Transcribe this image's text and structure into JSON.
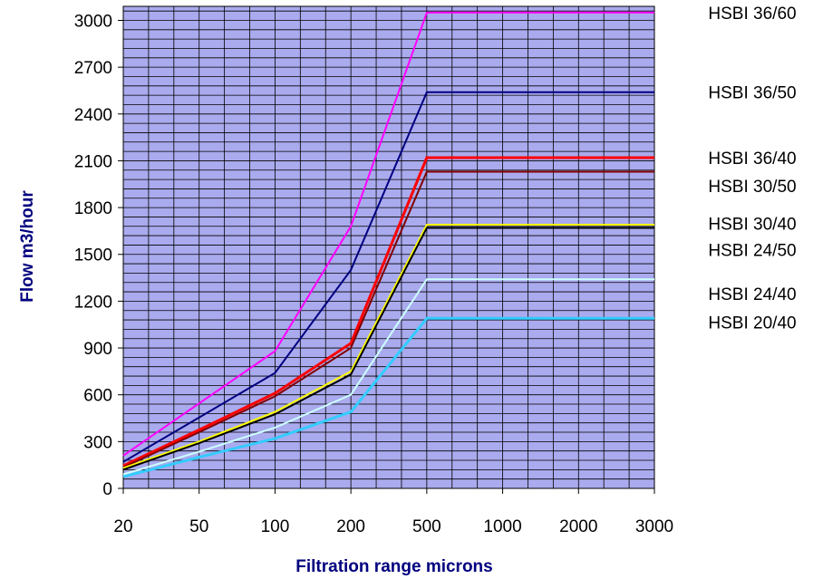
{
  "chart_data": {
    "type": "line",
    "title": "",
    "xlabel": "Filtration range microns",
    "ylabel": "Flow m3/hour",
    "x_scale": "categorical",
    "categories": [
      "20",
      "50",
      "100",
      "200",
      "500",
      "1000",
      "2000",
      "3000"
    ],
    "yticks": [
      "0",
      "300",
      "600",
      "900",
      "1200",
      "1500",
      "1800",
      "2100",
      "2400",
      "2700",
      "3000"
    ],
    "ylim": [
      0,
      3090
    ],
    "grid": true,
    "plot_background": "#aaaaee",
    "axis_title_color": "#00007f",
    "legend_placement": "right",
    "series": [
      {
        "name": "HSBI 36/60",
        "color": "#ff00ff",
        "width": 2,
        "values": [
          210,
          545,
          880,
          1680,
          3050,
          3050,
          3050,
          3050
        ]
      },
      {
        "name": "HSBI 36/50",
        "color": "#000080",
        "width": 2,
        "values": [
          170,
          455,
          740,
          1400,
          2540,
          2540,
          2540,
          2540
        ]
      },
      {
        "name": "HSBI 36/40",
        "color": "#ff0000",
        "width": 3,
        "values": [
          145,
          375,
          610,
          930,
          2120,
          2120,
          2120,
          2120
        ]
      },
      {
        "name": "HSBI 30/50",
        "color": "#800000",
        "width": 2,
        "values": [
          135,
          360,
          590,
          900,
          2030,
          2030,
          2030,
          2030
        ]
      },
      {
        "name": "HSBI 30/40",
        "color": "#ffff00",
        "width": 2,
        "values": [
          130,
          300,
          490,
          750,
          1690,
          1690,
          1690,
          1690
        ]
      },
      {
        "name": "HSBI 24/50",
        "color": "#000000",
        "width": 2,
        "values": [
          120,
          290,
          475,
          730,
          1670,
          1670,
          1670,
          1670
        ]
      },
      {
        "name": "HSBI 24/40",
        "color": "#ccffff",
        "width": 2,
        "values": [
          90,
          235,
          390,
          600,
          1340,
          1340,
          1340,
          1340
        ]
      },
      {
        "name": "HSBI 20/40",
        "color": "#33ccff",
        "width": 3,
        "values": [
          75,
          200,
          320,
          490,
          1090,
          1090,
          1090,
          1090
        ]
      }
    ],
    "legend": [
      {
        "label": "HSBI 36/60",
        "y": 3050
      },
      {
        "label": "HSBI 36/50",
        "y": 2540
      },
      {
        "label": "HSBI 36/40",
        "y": 2120
      },
      {
        "label": "HSBI 30/50",
        "y": 1940
      },
      {
        "label": "HSBI 30/40",
        "y": 1700
      },
      {
        "label": "HSBI 24/50",
        "y": 1530
      },
      {
        "label": "HSBI 24/40",
        "y": 1250
      },
      {
        "label": "HSBI 20/40",
        "y": 1065
      }
    ]
  }
}
